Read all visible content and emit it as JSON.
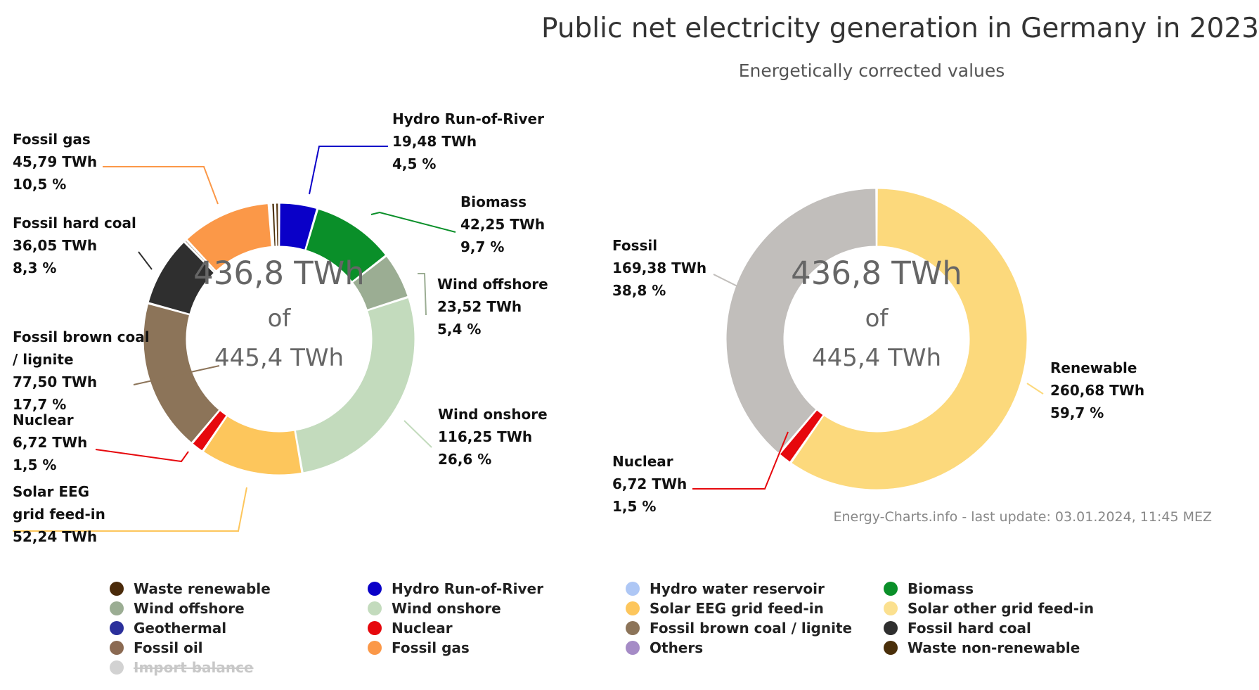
{
  "title": "Public net electricity generation in Germany in 2023",
  "subtitle": "Energetically corrected values",
  "footer": "Energy-Charts.info - last update: 03.01.2024, 11:45 MEZ",
  "center_text": {
    "line1": "436,8 TWh",
    "line2": "of",
    "line3": "445,4 TWh"
  },
  "chart_data": [
    {
      "type": "pie",
      "variant": "donut",
      "total_shown_twh": 436.8,
      "total_twh": 445.4,
      "slices": [
        {
          "name": "Hydro Run-of-River",
          "value": 19.48,
          "percent": "4,5 %",
          "value_label": "19,48 TWh",
          "color": "#0a00c8"
        },
        {
          "name": "Biomass",
          "value": 42.25,
          "percent": "9,7 %",
          "value_label": "42,25 TWh",
          "color": "#0a8f29"
        },
        {
          "name": "Wind offshore",
          "value": 23.52,
          "percent": "5,4 %",
          "value_label": "23,52 TWh",
          "color": "#9bad93"
        },
        {
          "name": "Wind onshore",
          "value": 116.25,
          "percent": "26,6 %",
          "value_label": "116,25 TWh",
          "color": "#c3dbbd"
        },
        {
          "name": "Solar EEG grid feed-in",
          "value": 52.24,
          "percent": "",
          "value_label": "52,24 TWh",
          "color": "#fdc65c"
        },
        {
          "name": "Nuclear",
          "value": 6.72,
          "percent": "1,5 %",
          "value_label": "6,72 TWh",
          "color": "#e6080d"
        },
        {
          "name": "Fossil brown coal / lignite",
          "value": 77.5,
          "percent": "17,7 %",
          "value_label": "77,50 TWh",
          "color": "#8c7459"
        },
        {
          "name": "Fossil hard coal",
          "value": 36.05,
          "percent": "8,3 %",
          "value_label": "36,05 TWh",
          "color": "#2f2f2f"
        },
        {
          "name": "Fossil oil",
          "value": 1.4,
          "percent": "",
          "value_label": "",
          "color": "#7a5f4a"
        },
        {
          "name": "Fossil gas",
          "value": 45.79,
          "percent": "10,5 %",
          "value_label": "45,79 TWh",
          "color": "#fb9848"
        },
        {
          "name": "Others",
          "value": 1.2,
          "percent": "",
          "value_label": "",
          "color": "#a58bc6"
        },
        {
          "name": "Waste non-renewable",
          "value": 2.0,
          "percent": "",
          "value_label": "",
          "color": "#4a2f0a"
        },
        {
          "name": "Waste renewable",
          "value": 2.0,
          "percent": "",
          "value_label": "",
          "color": "#5a3a14"
        }
      ]
    },
    {
      "type": "pie",
      "variant": "donut",
      "total_shown_twh": 436.8,
      "total_twh": 445.4,
      "slices": [
        {
          "name": "Renewable",
          "value": 260.68,
          "percent": "59,7 %",
          "value_label": "260,68 TWh",
          "color": "#fcd97c"
        },
        {
          "name": "Nuclear",
          "value": 6.72,
          "percent": "1,5 %",
          "value_label": "6,72 TWh",
          "color": "#e6080d"
        },
        {
          "name": "Fossil",
          "value": 169.38,
          "percent": "38,8 %",
          "value_label": "169,38 TWh",
          "color": "#c1bebb"
        }
      ]
    }
  ],
  "left_labels": [
    {
      "lines": [
        "Hydro Run-of-River",
        "19,48 TWh",
        "4,5 %"
      ]
    },
    {
      "lines": [
        "Biomass",
        "42,25 TWh",
        "9,7 %"
      ]
    },
    {
      "lines": [
        "Wind offshore",
        "23,52 TWh",
        "5,4 %"
      ]
    },
    {
      "lines": [
        "Wind onshore",
        "116,25 TWh",
        "26,6 %"
      ]
    },
    {
      "lines": [
        "Solar EEG",
        "grid feed-in",
        "52,24 TWh"
      ]
    },
    {
      "lines": [
        "Nuclear",
        "6,72 TWh",
        "1,5 %"
      ]
    },
    {
      "lines": [
        "Fossil brown coal",
        "/ lignite",
        "77,50 TWh",
        "17,7 %"
      ]
    },
    {
      "lines": [
        "Fossil hard coal",
        "36,05 TWh",
        "8,3 %"
      ]
    },
    {
      "lines": [
        "Fossil gas",
        "45,79 TWh",
        "10,5 %"
      ]
    }
  ],
  "right_labels": [
    {
      "lines": [
        "Renewable",
        "260,68 TWh",
        "59,7 %"
      ]
    },
    {
      "lines": [
        "Nuclear",
        "6,72 TWh",
        "1,5 %"
      ]
    },
    {
      "lines": [
        "Fossil",
        "169,38 TWh",
        "38,8 %"
      ]
    }
  ],
  "legend": [
    {
      "label": "Waste renewable",
      "color": "#4a2a0a",
      "hidden": false
    },
    {
      "label": "Hydro Run-of-River",
      "color": "#0a00c8",
      "hidden": false
    },
    {
      "label": "Hydro water reservoir",
      "color": "#aec7f5",
      "hidden": false
    },
    {
      "label": "Biomass",
      "color": "#0a8f29",
      "hidden": false
    },
    {
      "label": "Wind offshore",
      "color": "#9bad93",
      "hidden": false
    },
    {
      "label": "Wind onshore",
      "color": "#c3dbbd",
      "hidden": false
    },
    {
      "label": "Solar EEG grid feed-in",
      "color": "#fdc65c",
      "hidden": false
    },
    {
      "label": "Solar other grid feed-in",
      "color": "#fbe08f",
      "hidden": false
    },
    {
      "label": "Geothermal",
      "color": "#2b2f9b",
      "hidden": false
    },
    {
      "label": "Nuclear",
      "color": "#e6080d",
      "hidden": false
    },
    {
      "label": "Fossil brown coal / lignite",
      "color": "#8c7459",
      "hidden": false
    },
    {
      "label": "Fossil hard coal",
      "color": "#2f2f2f",
      "hidden": false
    },
    {
      "label": "Fossil oil",
      "color": "#8b6a52",
      "hidden": false
    },
    {
      "label": "Fossil gas",
      "color": "#fb9848",
      "hidden": false
    },
    {
      "label": "Others",
      "color": "#a58bc6",
      "hidden": false
    },
    {
      "label": "Waste non-renewable",
      "color": "#4a2f0a",
      "hidden": false
    },
    {
      "label": "Import balance",
      "color": "#d2d2d2",
      "hidden": true
    }
  ]
}
